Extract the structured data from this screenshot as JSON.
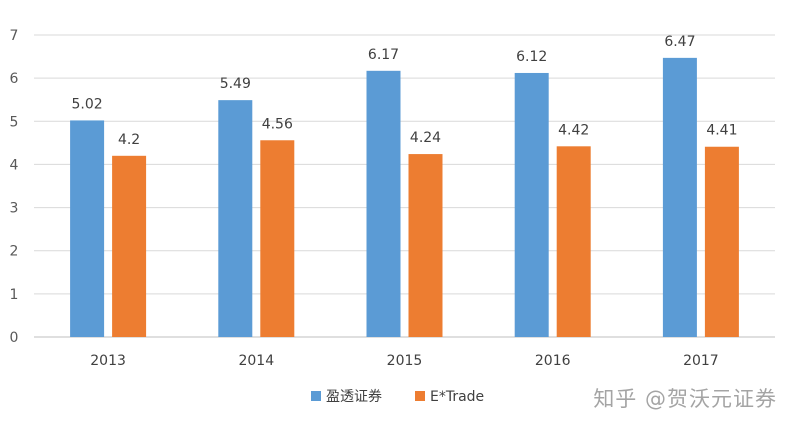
{
  "chart_data": {
    "type": "bar",
    "categories": [
      "2013",
      "2014",
      "2015",
      "2016",
      "2017"
    ],
    "series": [
      {
        "name": "盈透证券",
        "values": [
          5.02,
          5.49,
          6.17,
          6.12,
          6.47
        ],
        "color": "#5B9BD5"
      },
      {
        "name": "E*Trade",
        "values": [
          4.2,
          4.56,
          4.24,
          4.42,
          4.41
        ],
        "color": "#ED7D31"
      }
    ],
    "ylim": [
      0,
      7
    ],
    "yticks": [
      "0",
      "1",
      "2",
      "3",
      "4",
      "5",
      "6",
      "7"
    ],
    "grid": true,
    "legend": "bottom-center"
  },
  "watermark": "知乎 @贺沃元证券"
}
